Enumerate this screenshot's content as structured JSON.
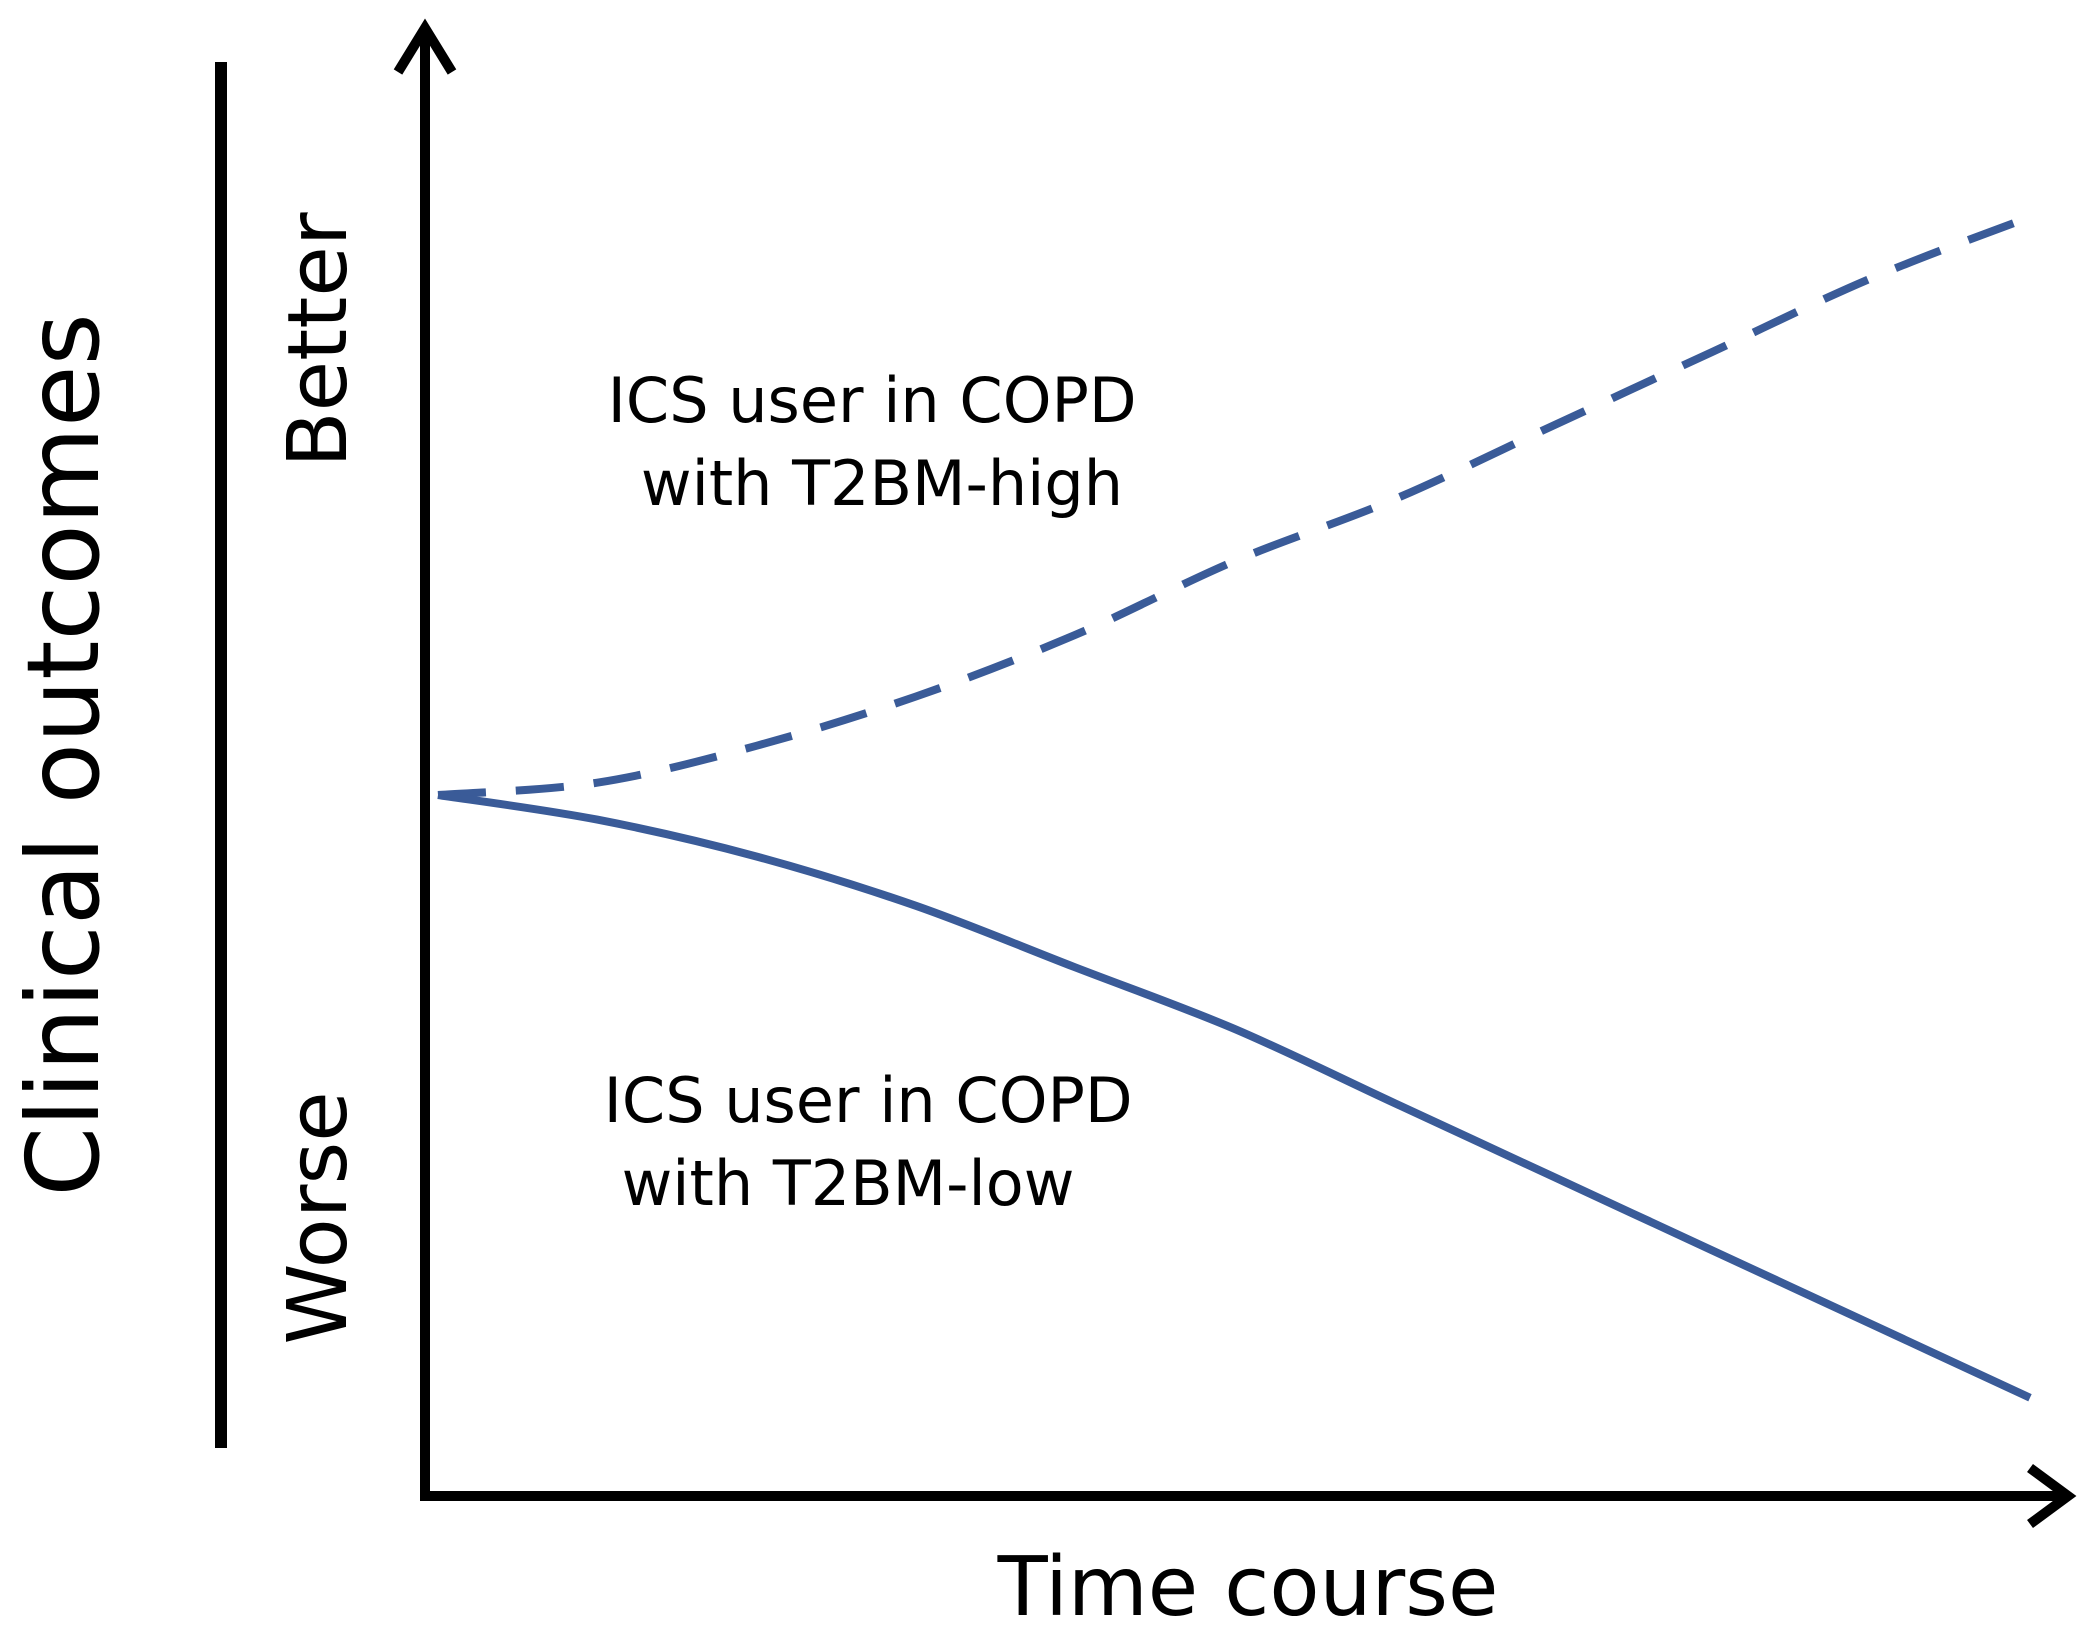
{
  "chart_data": {
    "type": "line",
    "title": "",
    "xlabel": "Time course",
    "ylabel": "Clinical outcomes",
    "y_direction_labels": {
      "high": "Better",
      "low": "Worse"
    },
    "xlim": [
      0,
      1
    ],
    "ylim": [
      0,
      1
    ],
    "grid": false,
    "ticks": false,
    "series": [
      {
        "name": "ICS user in COPD with T2BM-high",
        "label_lines": [
          "ICS user in COPD",
          "with T2BM-high"
        ],
        "style": "dashed",
        "color": "#3a5b98",
        "x": [
          0.0,
          0.1,
          0.2,
          0.3,
          0.4,
          0.5,
          0.6,
          0.7,
          0.8,
          0.9,
          1.0
        ],
        "y": [
          0.5,
          0.51,
          0.54,
          0.58,
          0.63,
          0.69,
          0.74,
          0.8,
          0.86,
          0.92,
          0.97
        ]
      },
      {
        "name": "ICS user in COPD with T2BM-low",
        "label_lines": [
          "ICS user in COPD",
          "with T2BM-low"
        ],
        "style": "solid",
        "color": "#3a5b98",
        "x": [
          0.0,
          0.1,
          0.2,
          0.3,
          0.4,
          0.5,
          0.6,
          0.7,
          0.8,
          0.9,
          1.0
        ],
        "y": [
          0.5,
          0.48,
          0.45,
          0.41,
          0.36,
          0.31,
          0.25,
          0.19,
          0.13,
          0.07,
          0.01
        ]
      }
    ]
  }
}
